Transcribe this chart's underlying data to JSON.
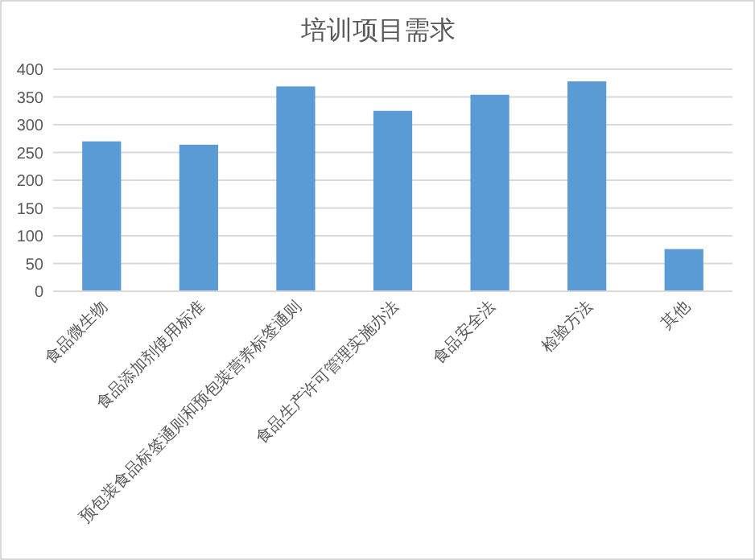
{
  "chart_data": {
    "type": "bar",
    "title": "培训项目需求",
    "categories": [
      "食品微生物",
      "食品添加剂使用标准",
      "预包装食品标签通则和预包装营养标签通则",
      "食品生产许可管理实施办法",
      "食品安全法",
      "检验方法",
      "其他"
    ],
    "values": [
      270,
      264,
      369,
      325,
      354,
      378,
      76
    ],
    "color": "#5b9bd5",
    "ylim": [
      0,
      400
    ],
    "yticks": [
      0,
      50,
      100,
      150,
      200,
      250,
      300,
      350,
      400
    ],
    "grid": "y"
  }
}
